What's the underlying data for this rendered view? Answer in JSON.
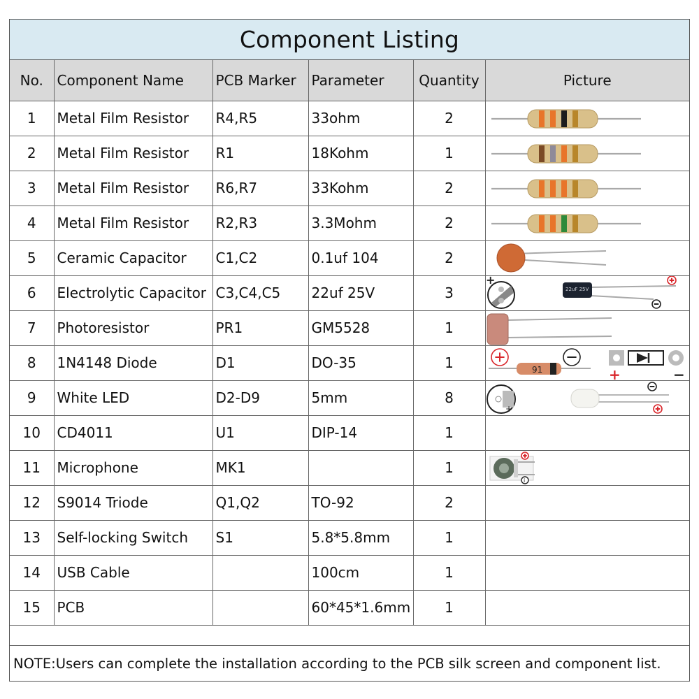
{
  "title": "Component Listing",
  "columns": {
    "no": "No.",
    "name": "Component Name",
    "marker": "PCB Marker",
    "parameter": "Parameter",
    "quantity": "Quantity",
    "picture": "Picture"
  },
  "rows": [
    {
      "no": "1",
      "name": "Metal Film Resistor",
      "marker": "R4,R5",
      "parameter": "33ohm",
      "quantity": "2",
      "picture": "resistor-orange-orange-black"
    },
    {
      "no": "2",
      "name": "Metal Film Resistor",
      "marker": "R1",
      "parameter": "18Kohm",
      "quantity": "1",
      "picture": "resistor-brown-grey-orange"
    },
    {
      "no": "3",
      "name": "Metal Film Resistor",
      "marker": "R6,R7",
      "parameter": "33Kohm",
      "quantity": "2",
      "picture": "resistor-orange-orange-orange"
    },
    {
      "no": "4",
      "name": "Metal Film Resistor",
      "marker": "R2,R3",
      "parameter": "3.3Mohm",
      "quantity": "2",
      "picture": "resistor-orange-orange-green"
    },
    {
      "no": "5",
      "name": "Ceramic Capacitor",
      "marker": "C1,C2",
      "parameter": "0.1uf 104",
      "quantity": "2",
      "picture": "ceramic-capacitor"
    },
    {
      "no": "6",
      "name": "Electrolytic Capacitor",
      "marker": "C3,C4,C5",
      "parameter": "22uf 25V",
      "quantity": "3",
      "picture": "electrolytic-capacitor"
    },
    {
      "no": "7",
      "name": "Photoresistor",
      "marker": "PR1",
      "parameter": "GM5528",
      "quantity": "1",
      "picture": "photoresistor"
    },
    {
      "no": "8",
      "name": "1N4148 Diode",
      "marker": "D1",
      "parameter": "DO-35",
      "quantity": "1",
      "picture": "diode"
    },
    {
      "no": "9",
      "name": "White LED",
      "marker": "D2-D9",
      "parameter": "5mm",
      "quantity": "8",
      "picture": "white-led"
    },
    {
      "no": "10",
      "name": "CD4011",
      "marker": "U1",
      "parameter": "DIP-14",
      "quantity": "1",
      "picture": ""
    },
    {
      "no": "11",
      "name": "Microphone",
      "marker": "MK1",
      "parameter": "",
      "quantity": "1",
      "picture": "microphone"
    },
    {
      "no": "12",
      "name": "S9014 Triode",
      "marker": "Q1,Q2",
      "parameter": "TO-92",
      "quantity": "2",
      "picture": ""
    },
    {
      "no": "13",
      "name": "Self-locking Switch",
      "marker": "S1",
      "parameter": "5.8*5.8mm",
      "quantity": "1",
      "picture": ""
    },
    {
      "no": "14",
      "name": "USB Cable",
      "marker": "",
      "parameter": "100cm",
      "quantity": "1",
      "picture": ""
    },
    {
      "no": "15",
      "name": "PCB",
      "marker": "",
      "parameter": "60*45*1.6mm",
      "quantity": "1",
      "picture": ""
    }
  ],
  "note": "NOTE:Users can complete the installation according to the PCB silk screen and component list.",
  "pictures": {
    "capacitor_label": "22uF 25V",
    "diode_label": "91",
    "plus": "+",
    "minus": "−",
    "marker_i": "i"
  },
  "colors": {
    "title_bg": "#d9eaf2",
    "header_bg": "#d9d9d9",
    "resistor_body": "#d9c08a",
    "band_orange": "#e8752a",
    "band_black": "#1d1d1d",
    "band_brown": "#7a4a26",
    "band_grey": "#8e8a99",
    "band_green": "#2f8a3a",
    "band_gold": "#b8862a",
    "ceramic": "#cf6a35",
    "plus_red": "#d9262b"
  }
}
